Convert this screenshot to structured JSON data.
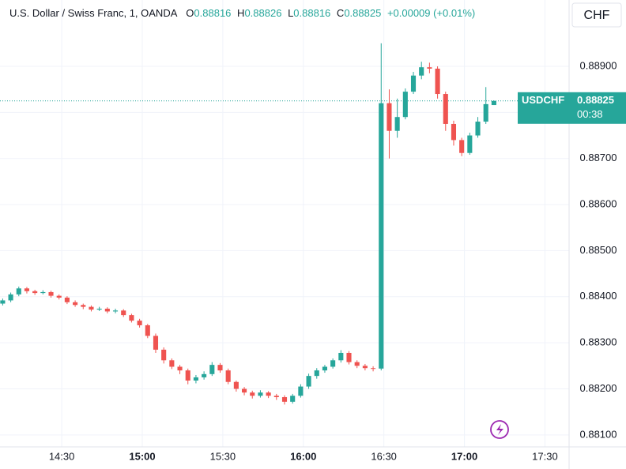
{
  "chart_data": {
    "type": "candlestick",
    "title": "U.S. Dollar / Swiss Franc, 1, OANDA",
    "symbol": "USDCHF",
    "currency": "CHF",
    "countdown": "00:38",
    "change": "+0.00009 (+0.01%)",
    "field_labels": {
      "open": "O",
      "high": "H",
      "low": "L",
      "close": "C"
    },
    "up_color": "#26a69a",
    "down_color": "#ef5350",
    "grid": true,
    "x": [
      848,
      851,
      854,
      857,
      860,
      863,
      866,
      869,
      872,
      875,
      878,
      881,
      884,
      887,
      890,
      893,
      896,
      899,
      902,
      905,
      908,
      911,
      914,
      917,
      920,
      923,
      926,
      929,
      932,
      935,
      938,
      941,
      944,
      947,
      950,
      953,
      956,
      959,
      962,
      965,
      968,
      971,
      974,
      977,
      980,
      983,
      986,
      989,
      992,
      995,
      998,
      1001,
      1004,
      1007,
      1010,
      1013,
      1016,
      1019,
      1022,
      1025,
      1028,
      1031
    ],
    "open": [
      0.88385,
      0.88392,
      0.88405,
      0.88418,
      0.88412,
      0.88408,
      0.8841,
      0.88402,
      0.88398,
      0.88388,
      0.88382,
      0.88378,
      0.88372,
      0.88374,
      0.88368,
      0.8837,
      0.8836,
      0.88348,
      0.88338,
      0.88315,
      0.88285,
      0.88262,
      0.88248,
      0.8824,
      0.88218,
      0.88225,
      0.88232,
      0.88252,
      0.8824,
      0.88215,
      0.882,
      0.88192,
      0.88185,
      0.88192,
      0.88185,
      0.88182,
      0.88172,
      0.88185,
      0.88205,
      0.88228,
      0.8824,
      0.88248,
      0.88262,
      0.88278,
      0.88258,
      0.8825,
      0.88245,
      0.88244,
      0.8882,
      0.8876,
      0.8879,
      0.88845,
      0.8888,
      0.88898,
      0.88895,
      0.8884,
      0.88775,
      0.8874,
      0.88712,
      0.8875,
      0.8878,
      0.88816
    ],
    "high": [
      0.88396,
      0.88409,
      0.88422,
      0.88421,
      0.88415,
      0.88414,
      0.88413,
      0.88405,
      0.88401,
      0.88392,
      0.88385,
      0.88381,
      0.88378,
      0.88377,
      0.88374,
      0.88373,
      0.88363,
      0.88352,
      0.88341,
      0.8832,
      0.8829,
      0.88266,
      0.88252,
      0.88244,
      0.8823,
      0.88238,
      0.88258,
      0.88256,
      0.88244,
      0.88218,
      0.88204,
      0.88196,
      0.88197,
      0.88195,
      0.88189,
      0.88186,
      0.88189,
      0.8821,
      0.88233,
      0.88245,
      0.88252,
      0.88266,
      0.88284,
      0.88282,
      0.88262,
      0.88254,
      0.88249,
      0.8895,
      0.8885,
      0.8883,
      0.88852,
      0.88888,
      0.8891,
      0.88908,
      0.889,
      0.88845,
      0.88782,
      0.88745,
      0.88756,
      0.8879,
      0.88855,
      0.88826
    ],
    "low": [
      0.88381,
      0.88388,
      0.88401,
      0.88407,
      0.88404,
      0.88405,
      0.88398,
      0.88394,
      0.88384,
      0.88378,
      0.88373,
      0.88368,
      0.88369,
      0.88364,
      0.88364,
      0.88356,
      0.88344,
      0.88333,
      0.8831,
      0.88278,
      0.88255,
      0.88243,
      0.88232,
      0.8821,
      0.88212,
      0.8822,
      0.88228,
      0.88235,
      0.8821,
      0.88194,
      0.88186,
      0.88179,
      0.88181,
      0.8818,
      0.88176,
      0.88166,
      0.88168,
      0.88181,
      0.882,
      0.88222,
      0.88235,
      0.88244,
      0.88257,
      0.88253,
      0.88245,
      0.8824,
      0.88238,
      0.8824,
      0.887,
      0.88745,
      0.88785,
      0.8884,
      0.88872,
      0.88885,
      0.8883,
      0.8876,
      0.88728,
      0.88705,
      0.88708,
      0.88745,
      0.88775,
      0.88816
    ],
    "close": [
      0.88392,
      0.88405,
      0.88418,
      0.88412,
      0.88408,
      0.8841,
      0.88402,
      0.88398,
      0.88388,
      0.88382,
      0.88378,
      0.88372,
      0.88374,
      0.88368,
      0.8837,
      0.8836,
      0.88348,
      0.88338,
      0.88315,
      0.88285,
      0.88262,
      0.88248,
      0.8824,
      0.88218,
      0.88225,
      0.88232,
      0.88252,
      0.8824,
      0.88215,
      0.882,
      0.88192,
      0.88185,
      0.88192,
      0.88185,
      0.88182,
      0.88172,
      0.88185,
      0.88205,
      0.88228,
      0.8824,
      0.88248,
      0.88262,
      0.88278,
      0.88258,
      0.8825,
      0.88245,
      0.88244,
      0.8882,
      0.8876,
      0.8879,
      0.88845,
      0.8888,
      0.88898,
      0.88895,
      0.8884,
      0.88775,
      0.8874,
      0.88712,
      0.8875,
      0.8878,
      0.88818,
      0.88825
    ],
    "xlim": [
      847,
      1059
    ],
    "ylim": [
      0.88074,
      0.89044
    ],
    "xticks": [
      {
        "value": 870,
        "label": "14:30"
      },
      {
        "value": 900,
        "label": "15:00"
      },
      {
        "value": 930,
        "label": "15:30"
      },
      {
        "value": 960,
        "label": "16:00"
      },
      {
        "value": 990,
        "label": "16:30"
      },
      {
        "value": 1020,
        "label": "17:00"
      },
      {
        "value": 1050,
        "label": "17:30"
      }
    ],
    "yticks": [
      {
        "value": 0.881,
        "label": "0.88100"
      },
      {
        "value": 0.882,
        "label": "0.88200"
      },
      {
        "value": 0.883,
        "label": "0.88300"
      },
      {
        "value": 0.884,
        "label": "0.88400"
      },
      {
        "value": 0.885,
        "label": "0.88500"
      },
      {
        "value": 0.886,
        "label": "0.88600"
      },
      {
        "value": 0.887,
        "label": "0.88700"
      },
      {
        "value": 0.888,
        "label": "0.88800"
      },
      {
        "value": 0.889,
        "label": "0.88900"
      }
    ]
  }
}
